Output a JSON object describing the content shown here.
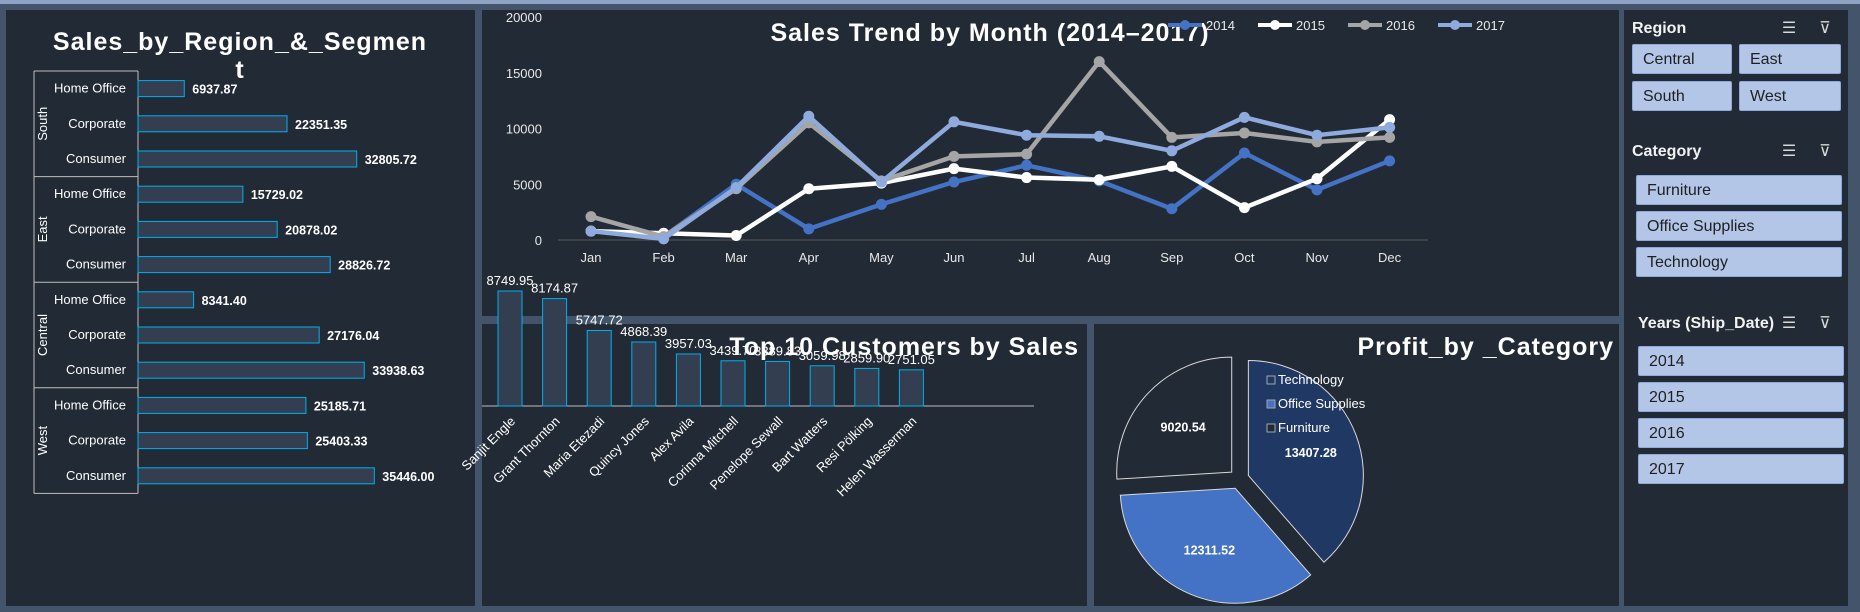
{
  "region_chart": {
    "title_line1": "Sales_by_Region_&_Segmen",
    "title_line2": "t",
    "groups": [
      {
        "region": "South",
        "segments": [
          {
            "name": "Home Office",
            "value": 6937.87,
            "label": "6937.87"
          },
          {
            "name": "Corporate",
            "value": 22351.35,
            "label": "22351.35"
          },
          {
            "name": "Consumer",
            "value": 32805.72,
            "label": "32805.72"
          }
        ]
      },
      {
        "region": "East",
        "segments": [
          {
            "name": "Home Office",
            "value": 15729.02,
            "label": "15729.02"
          },
          {
            "name": "Corporate",
            "value": 20878.02,
            "label": "20878.02"
          },
          {
            "name": "Consumer",
            "value": 28826.72,
            "label": "28826.72"
          }
        ]
      },
      {
        "region": "Central",
        "segments": [
          {
            "name": "Home Office",
            "value": 8341.4,
            "label": "8341.40"
          },
          {
            "name": "Corporate",
            "value": 27176.04,
            "label": "27176.04"
          },
          {
            "name": "Consumer",
            "value": 33938.63,
            "label": "33938.63"
          }
        ]
      },
      {
        "region": "West",
        "segments": [
          {
            "name": "Home Office",
            "value": 25185.71,
            "label": "25185.71"
          },
          {
            "name": "Corporate",
            "value": 25403.33,
            "label": "25403.33"
          },
          {
            "name": "Consumer",
            "value": 35446.0,
            "label": "35446.00"
          }
        ]
      }
    ]
  },
  "chart_data": [
    {
      "type": "bar",
      "orientation": "horizontal",
      "title": "Sales_by_Region_&_Segment",
      "categories": [
        "South / Home Office",
        "South / Corporate",
        "South / Consumer",
        "East / Home Office",
        "East / Corporate",
        "East / Consumer",
        "Central / Home Office",
        "Central / Corporate",
        "Central / Consumer",
        "West / Home Office",
        "West / Corporate",
        "West / Consumer"
      ],
      "values": [
        6937.87,
        22351.35,
        32805.72,
        15729.02,
        20878.02,
        28826.72,
        8341.4,
        27176.04,
        33938.63,
        25185.71,
        25403.33,
        35446.0
      ]
    },
    {
      "type": "line",
      "title": "Sales Trend by Month (2014–2017)",
      "x": [
        "Jan",
        "Feb",
        "Mar",
        "Apr",
        "May",
        "Jun",
        "Jul",
        "Aug",
        "Sep",
        "Oct",
        "Nov",
        "Dec"
      ],
      "ylim": [
        0,
        20000
      ],
      "yticks": [
        "0",
        "5000",
        "10000",
        "15000",
        "20000"
      ],
      "legend_position": "top-right",
      "grid": false,
      "series": [
        {
          "name": "2014",
          "color": "#4472c4",
          "values": [
            800,
            300,
            5000,
            1000,
            3200,
            5200,
            6700,
            5300,
            2800,
            7800,
            4500,
            7100
          ]
        },
        {
          "name": "2015",
          "color": "#ffffff",
          "values": [
            800,
            600,
            400,
            4600,
            5100,
            6400,
            5600,
            5400,
            6600,
            2900,
            5500,
            10800
          ]
        },
        {
          "name": "2016",
          "color": "#a5a5a5",
          "values": [
            2100,
            300,
            4600,
            10500,
            5300,
            7500,
            7700,
            16000,
            9200,
            9600,
            8800,
            9200
          ]
        },
        {
          "name": "2017",
          "color": "#8faadc",
          "values": [
            800,
            100,
            4700,
            11100,
            5200,
            10600,
            9400,
            9300,
            8000,
            11000,
            9400,
            10100
          ]
        }
      ]
    },
    {
      "type": "bar",
      "title": "Top 10 Customers by Sales",
      "categories": [
        "Sanjit Engle",
        "Grant Thornton",
        "Maria Etezadi",
        "Quincy Jones",
        "Alex Avila",
        "Corinna Mitchell",
        "Penelope Sewall",
        "Bart Watters",
        "Resi Pölking",
        "Helen Wasserman"
      ],
      "values": [
        8749.95,
        8174.87,
        5747.72,
        4868.39,
        3957.03,
        3439.7,
        3389.83,
        3059.98,
        2859.9,
        2751.05
      ],
      "labels": [
        "8749.95",
        "8174.87",
        "5747.72",
        "4868.39",
        "3957.03",
        "3439.70",
        "3389.83",
        "3059.98",
        "2859.90",
        "2751.05"
      ]
    },
    {
      "type": "pie",
      "title": "Profit_by _Category",
      "slices": [
        {
          "name": "Technology",
          "value": 13407.28,
          "label": "13407.28",
          "color": "#203864"
        },
        {
          "name": "Office Supplies",
          "value": 12311.52,
          "label": "12311.52",
          "color": "#4472c4"
        },
        {
          "name": "Furniture",
          "value": 9020.54,
          "label": "9020.54",
          "color": "#222a35"
        }
      ],
      "legend_position": "right"
    }
  ],
  "slicers": {
    "region": {
      "title": "Region",
      "items": [
        "Central",
        "East",
        "South",
        "West"
      ]
    },
    "category": {
      "title": "Category",
      "items": [
        "Furniture",
        "Office Supplies",
        "Technology"
      ]
    },
    "years": {
      "title": "Years (Ship_Date)",
      "items": [
        "2014",
        "2015",
        "2016",
        "2017"
      ]
    },
    "icons": [
      "multi-select-icon",
      "clear-filter-icon"
    ]
  },
  "colors": {
    "panel": "#222a35",
    "background": "#44546a",
    "accent": "#4472c4",
    "bar_outline": "#00b0f0"
  }
}
